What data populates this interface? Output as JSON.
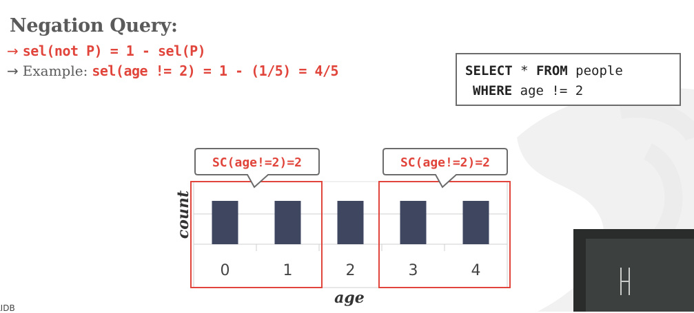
{
  "slide": {
    "title": "Negation Query:",
    "bullet1": {
      "formula": "sel(not P) = 1 - sel(P)"
    },
    "bullet2": {
      "prefix": "Example:",
      "formula": "sel(age != 2) = 1 - (1/5) = 4/5"
    },
    "sql": {
      "kw_select": "SELECT",
      "star": " * ",
      "kw_from": "FROM",
      "table": " people",
      "kw_where": "WHERE",
      "condition": " age != 2"
    },
    "footer_text": "LIDB"
  },
  "chart_data": {
    "type": "bar",
    "categories": [
      "0",
      "1",
      "2",
      "3",
      "4"
    ],
    "values": [
      1,
      1,
      1,
      1,
      1
    ],
    "xlabel": "age",
    "ylabel": "count",
    "bar_color": "#3f4660",
    "highlight_color": "#e0443a",
    "highlight_groups": [
      {
        "categories": [
          "0",
          "1"
        ],
        "label": "SC(age!=2)=2"
      },
      {
        "categories": [
          "3",
          "4"
        ],
        "label": "SC(age!=2)=2"
      }
    ]
  }
}
